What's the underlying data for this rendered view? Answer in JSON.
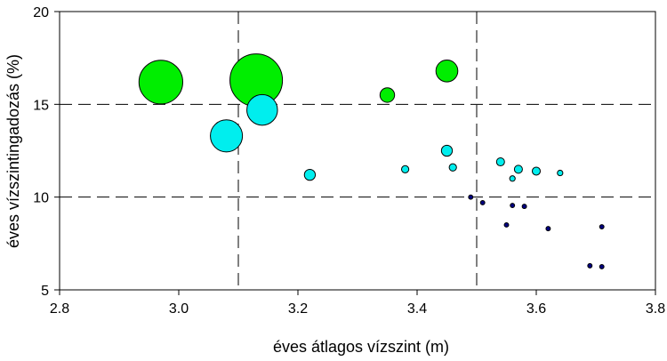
{
  "chart_data": {
    "type": "scatter",
    "xlabel": "éves átlagos vízszint (m)",
    "ylabel": "éves vízszintingadozás (%)",
    "xlim": [
      2.8,
      3.8
    ],
    "ylim": [
      5,
      20
    ],
    "x_ticks": [
      "2.8",
      "3.0",
      "3.2",
      "3.4",
      "3.6",
      "3.8"
    ],
    "y_ticks": [
      "5",
      "10",
      "15",
      "20"
    ],
    "x_tick_values": [
      2.8,
      3.0,
      3.2,
      3.4,
      3.6,
      3.8
    ],
    "y_tick_values": [
      5,
      10,
      15,
      20
    ],
    "reference_lines": {
      "x": [
        3.1,
        3.5
      ],
      "y": [
        10,
        15
      ],
      "style": "dashed"
    },
    "series": [
      {
        "color": "#00ee00",
        "points": [
          {
            "x": 2.97,
            "y": 16.2,
            "size": 3.0
          },
          {
            "x": 3.13,
            "y": 16.3,
            "size": 3.6
          },
          {
            "x": 3.35,
            "y": 15.5,
            "size": 1.0
          },
          {
            "x": 3.45,
            "y": 16.8,
            "size": 1.5
          }
        ]
      },
      {
        "color": "#00eeee",
        "points": [
          {
            "x": 3.08,
            "y": 13.3,
            "size": 2.2
          },
          {
            "x": 3.14,
            "y": 14.7,
            "size": 2.1
          },
          {
            "x": 3.22,
            "y": 11.2,
            "size": 0.75
          },
          {
            "x": 3.38,
            "y": 11.5,
            "size": 0.5
          },
          {
            "x": 3.45,
            "y": 12.5,
            "size": 0.75
          },
          {
            "x": 3.46,
            "y": 11.6,
            "size": 0.5
          },
          {
            "x": 3.54,
            "y": 11.9,
            "size": 0.55
          },
          {
            "x": 3.56,
            "y": 11.0,
            "size": 0.38
          },
          {
            "x": 3.57,
            "y": 11.5,
            "size": 0.55
          },
          {
            "x": 3.6,
            "y": 11.4,
            "size": 0.55
          },
          {
            "x": 3.64,
            "y": 11.3,
            "size": 0.38
          }
        ]
      },
      {
        "color": "#000080",
        "points": [
          {
            "x": 3.49,
            "y": 10.0,
            "size": 0.3
          },
          {
            "x": 3.51,
            "y": 9.7,
            "size": 0.3
          },
          {
            "x": 3.55,
            "y": 8.5,
            "size": 0.3
          },
          {
            "x": 3.56,
            "y": 9.55,
            "size": 0.3
          },
          {
            "x": 3.58,
            "y": 9.5,
            "size": 0.3
          },
          {
            "x": 3.62,
            "y": 8.3,
            "size": 0.3
          },
          {
            "x": 3.69,
            "y": 6.3,
            "size": 0.3
          },
          {
            "x": 3.71,
            "y": 6.25,
            "size": 0.3
          },
          {
            "x": 3.71,
            "y": 8.4,
            "size": 0.3
          }
        ]
      }
    ]
  }
}
